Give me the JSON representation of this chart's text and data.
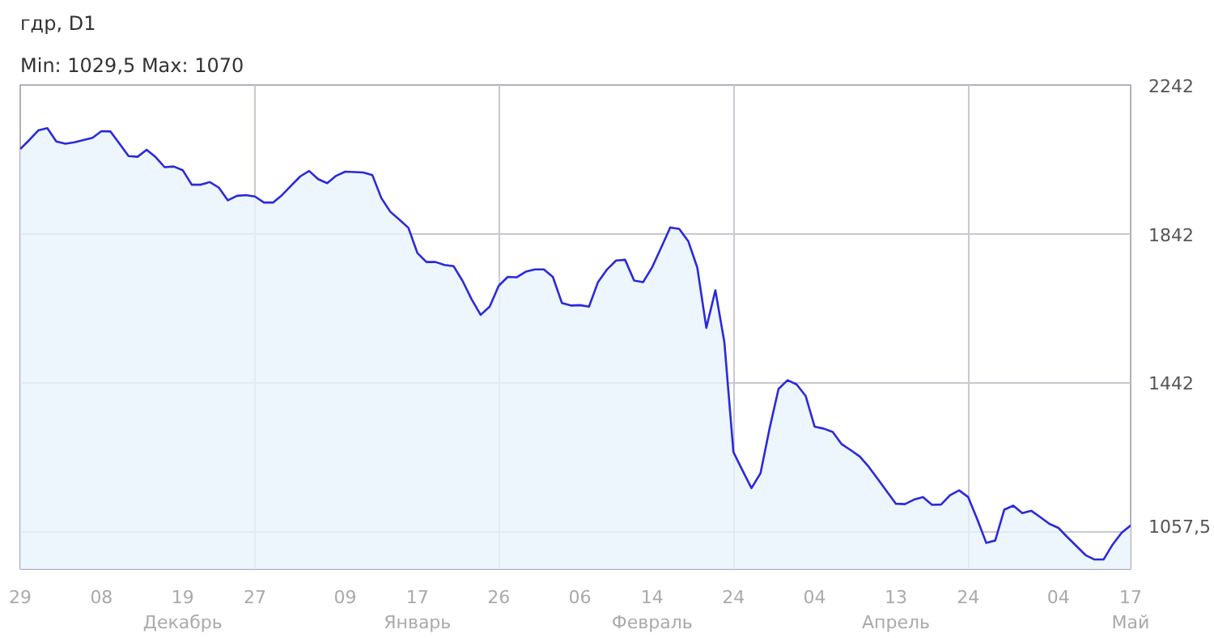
{
  "chart_data": {
    "type": "area",
    "title": "гдр, D1",
    "subtitle": "Min: 1029,5     Max: 1070",
    "categories": [
      "29",
      null,
      null,
      null,
      null,
      null,
      null,
      null,
      null,
      "08",
      null,
      null,
      null,
      null,
      null,
      null,
      null,
      null,
      "19\nДекабрь",
      null,
      null,
      null,
      null,
      null,
      null,
      null,
      "27",
      null,
      null,
      null,
      null,
      null,
      null,
      null,
      null,
      null,
      "09",
      null,
      null,
      null,
      null,
      null,
      null,
      null,
      "17\nЯнварь",
      null,
      null,
      null,
      null,
      null,
      null,
      null,
      null,
      "26",
      null,
      null,
      null,
      null,
      null,
      null,
      null,
      null,
      "06",
      null,
      null,
      null,
      null,
      null,
      null,
      null,
      "14\nФевраль",
      null,
      null,
      null,
      null,
      null,
      null,
      null,
      null,
      "24",
      null,
      null,
      null,
      null,
      null,
      null,
      null,
      null,
      "04",
      null,
      null,
      null,
      null,
      null,
      null,
      null,
      null,
      "13\nАпрель",
      null,
      null,
      null,
      null,
      null,
      null,
      null,
      "24",
      null,
      null,
      null,
      null,
      null,
      null,
      null,
      null,
      null,
      "04",
      null,
      null,
      null,
      null,
      null,
      null,
      null,
      "17\nМай"
    ],
    "series": [
      {
        "color": "#2a2ad8",
        "values": [
          2070,
          2094,
          2120,
          2126,
          2090,
          2084,
          2088,
          2094,
          2100,
          2118,
          2117,
          2084,
          2051,
          2049,
          2068,
          2048,
          2021,
          2023,
          2013,
          1974,
          1974,
          1981,
          1966,
          1932,
          1944,
          1946,
          1942,
          1926,
          1926,
          1946,
          1971,
          1996,
          2011,
          1989,
          1978,
          1998,
          2009,
          2008,
          2007,
          2000,
          1938,
          1901,
          1880,
          1858,
          1790,
          1766,
          1766,
          1758,
          1755,
          1715,
          1666,
          1624,
          1646,
          1702,
          1726,
          1725,
          1740,
          1746,
          1746,
          1726,
          1656,
          1649,
          1650,
          1646,
          1712,
          1746,
          1770,
          1772,
          1716,
          1712,
          1752,
          1805,
          1859,
          1855,
          1822,
          1751,
          1589,
          1690,
          1550,
          1255,
          1206,
          1158,
          1198,
          1318,
          1425,
          1448,
          1437,
          1406,
          1323,
          1318,
          1309,
          1276,
          1260,
          1243,
          1215,
          1182,
          1149,
          1116,
          1115,
          1127,
          1134,
          1113,
          1114,
          1139,
          1152,
          1134,
          1075,
          1011,
          1017,
          1100,
          1111,
          1091,
          1097,
          1080,
          1062,
          1051,
          1026,
          1002,
          978,
          966,
          966,
          1006,
          1038,
          1057.5
        ],
        "value_labels": [
          null,
          null,
          null,
          null,
          null,
          null,
          null,
          null,
          null,
          null,
          null,
          null,
          null,
          null,
          null,
          null,
          null,
          null,
          null,
          null,
          null,
          null,
          null,
          null,
          null,
          null,
          null,
          null,
          null,
          null,
          null,
          null,
          null,
          null,
          null,
          null,
          null,
          null,
          null,
          null,
          null,
          null,
          null,
          null,
          null,
          null,
          null,
          null,
          null,
          null,
          null,
          null,
          null,
          null,
          null,
          null,
          null,
          null,
          null,
          null,
          null,
          null,
          null,
          null,
          null,
          null,
          null,
          null,
          null,
          null,
          null,
          null,
          null,
          null,
          null,
          null,
          null,
          null,
          null,
          null,
          null,
          null,
          null,
          null,
          null,
          null,
          null,
          null,
          null,
          null,
          null,
          null,
          null,
          null,
          null,
          null,
          null,
          null,
          null,
          null,
          null,
          null,
          null,
          null,
          null,
          null,
          null,
          null,
          null,
          null,
          null,
          null,
          null,
          null,
          null,
          null,
          null,
          null,
          null,
          null,
          null,
          null,
          null,
          "1057,5"
        ]
      }
    ],
    "ylim": [
      940,
      2242
    ],
    "yticks": [
      {
        "value": 1042,
        "label": null
      },
      1442,
      1842,
      2242
    ],
    "grid": true
  }
}
